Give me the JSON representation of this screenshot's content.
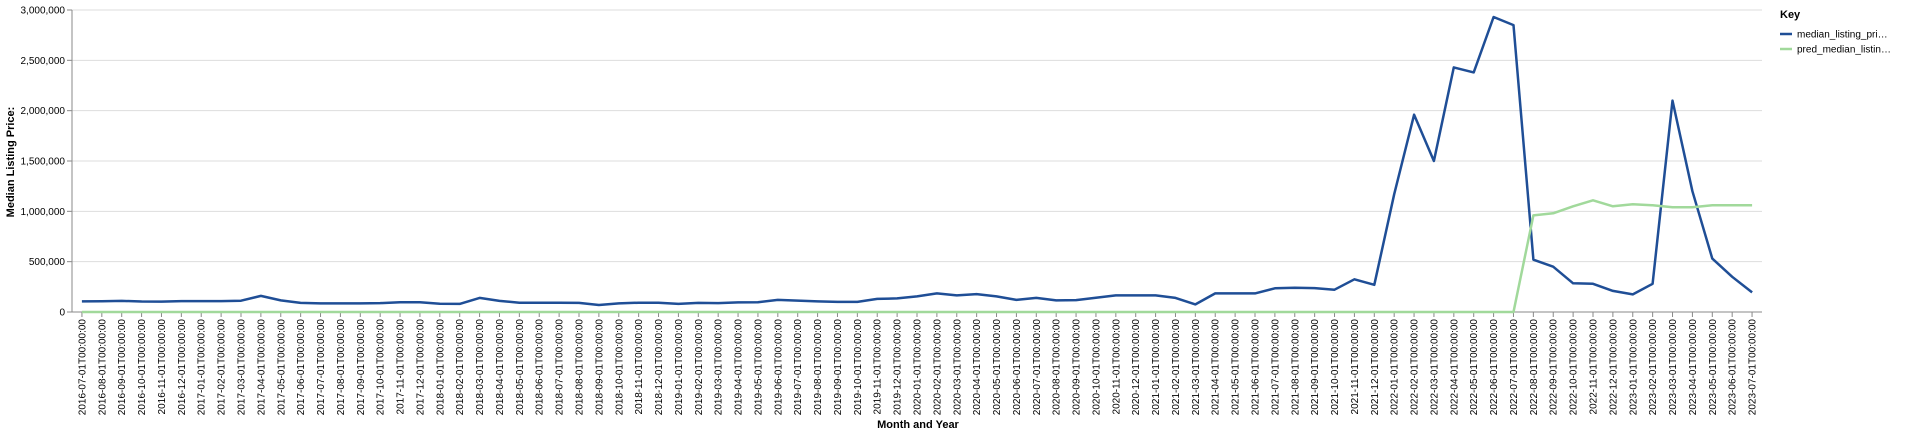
{
  "chart_data": {
    "type": "line",
    "x_label": "Month and Year",
    "y_label": "Median Listing Price:",
    "legend_title": "Key",
    "categories": [
      "2016-07-01T00:00:00",
      "2016-08-01T00:00:00",
      "2016-09-01T00:00:00",
      "2016-10-01T00:00:00",
      "2016-11-01T00:00:00",
      "2016-12-01T00:00:00",
      "2017-01-01T00:00:00",
      "2017-02-01T00:00:00",
      "2017-03-01T00:00:00",
      "2017-04-01T00:00:00",
      "2017-05-01T00:00:00",
      "2017-06-01T00:00:00",
      "2017-07-01T00:00:00",
      "2017-08-01T00:00:00",
      "2017-09-01T00:00:00",
      "2017-10-01T00:00:00",
      "2017-11-01T00:00:00",
      "2017-12-01T00:00:00",
      "2018-01-01T00:00:00",
      "2018-02-01T00:00:00",
      "2018-03-01T00:00:00",
      "2018-04-01T00:00:00",
      "2018-05-01T00:00:00",
      "2018-06-01T00:00:00",
      "2018-07-01T00:00:00",
      "2018-08-01T00:00:00",
      "2018-09-01T00:00:00",
      "2018-10-01T00:00:00",
      "2018-11-01T00:00:00",
      "2018-12-01T00:00:00",
      "2019-01-01T00:00:00",
      "2019-02-01T00:00:00",
      "2019-03-01T00:00:00",
      "2019-04-01T00:00:00",
      "2019-05-01T00:00:00",
      "2019-06-01T00:00:00",
      "2019-07-01T00:00:00",
      "2019-08-01T00:00:00",
      "2019-09-01T00:00:00",
      "2019-10-01T00:00:00",
      "2019-11-01T00:00:00",
      "2019-12-01T00:00:00",
      "2020-01-01T00:00:00",
      "2020-02-01T00:00:00",
      "2020-03-01T00:00:00",
      "2020-04-01T00:00:00",
      "2020-05-01T00:00:00",
      "2020-06-01T00:00:00",
      "2020-07-01T00:00:00",
      "2020-08-01T00:00:00",
      "2020-09-01T00:00:00",
      "2020-10-01T00:00:00",
      "2020-11-01T00:00:00",
      "2020-12-01T00:00:00",
      "2021-01-01T00:00:00",
      "2021-02-01T00:00:00",
      "2021-03-01T00:00:00",
      "2021-04-01T00:00:00",
      "2021-05-01T00:00:00",
      "2021-06-01T00:00:00",
      "2021-07-01T00:00:00",
      "2021-08-01T00:00:00",
      "2021-09-01T00:00:00",
      "2021-10-01T00:00:00",
      "2021-11-01T00:00:00",
      "2021-12-01T00:00:00",
      "2022-01-01T00:00:00",
      "2022-02-01T00:00:00",
      "2022-03-01T00:00:00",
      "2022-04-01T00:00:00",
      "2022-05-01T00:00:00",
      "2022-06-01T00:00:00",
      "2022-07-01T00:00:00",
      "2022-08-01T00:00:00",
      "2022-09-01T00:00:00",
      "2022-10-01T00:00:00",
      "2022-11-01T00:00:00",
      "2022-12-01T00:00:00",
      "2023-01-01T00:00:00",
      "2023-02-01T00:00:00",
      "2023-03-01T00:00:00",
      "2023-04-01T00:00:00",
      "2023-05-01T00:00:00",
      "2023-06-01T00:00:00",
      "2023-07-01T00:00:00"
    ],
    "series": [
      {
        "name": "median_listing_pri…",
        "color": "#1f4e96",
        "values": [
          105000,
          107000,
          110000,
          104000,
          103000,
          108000,
          108000,
          108000,
          112000,
          160000,
          115000,
          90000,
          85000,
          85000,
          85000,
          88000,
          97000,
          97000,
          82000,
          80000,
          140000,
          110000,
          92000,
          92000,
          92000,
          90000,
          70000,
          85000,
          92000,
          92000,
          80000,
          90000,
          88000,
          95000,
          97000,
          120000,
          113000,
          105000,
          100000,
          100000,
          130000,
          135000,
          155000,
          185000,
          165000,
          178000,
          155000,
          120000,
          140000,
          115000,
          118000,
          142000,
          165000,
          165000,
          165000,
          140000,
          75000,
          185000,
          185000,
          185000,
          235000,
          240000,
          237000,
          222000,
          325000,
          270000,
          1170000,
          1960000,
          1500000,
          2430000,
          2380000,
          2930000,
          2850000,
          520000,
          450000,
          285000,
          280000,
          210000,
          175000,
          280000,
          2100000,
          1200000,
          530000,
          350000,
          195000
        ]
      },
      {
        "name": "pred_median_listin…",
        "color": "#a1d99b",
        "values": [
          0,
          0,
          0,
          0,
          0,
          0,
          0,
          0,
          0,
          0,
          0,
          0,
          0,
          0,
          0,
          0,
          0,
          0,
          0,
          0,
          0,
          0,
          0,
          0,
          0,
          0,
          0,
          0,
          0,
          0,
          0,
          0,
          0,
          0,
          0,
          0,
          0,
          0,
          0,
          0,
          0,
          0,
          0,
          0,
          0,
          0,
          0,
          0,
          0,
          0,
          0,
          0,
          0,
          0,
          0,
          0,
          0,
          0,
          0,
          0,
          0,
          0,
          0,
          0,
          0,
          0,
          0,
          0,
          0,
          0,
          0,
          0,
          0,
          960000,
          980000,
          1050000,
          1110000,
          1050000,
          1070000,
          1060000,
          1040000,
          1040000,
          1060000,
          1060000,
          1060000
        ]
      }
    ],
    "ylim": [
      0,
      3000000
    ],
    "yticks": [
      0,
      {
        "value": 500000,
        "label": "500,000"
      },
      {
        "value": 1000000,
        "label": "1,000,000"
      },
      {
        "value": 1500000,
        "label": "1,500,000"
      },
      {
        "value": 2000000,
        "label": "2,000,000"
      },
      {
        "value": 2500000,
        "label": "2,500,000"
      },
      {
        "value": 3000000,
        "label": "3,000,000"
      }
    ],
    "grid": true
  }
}
